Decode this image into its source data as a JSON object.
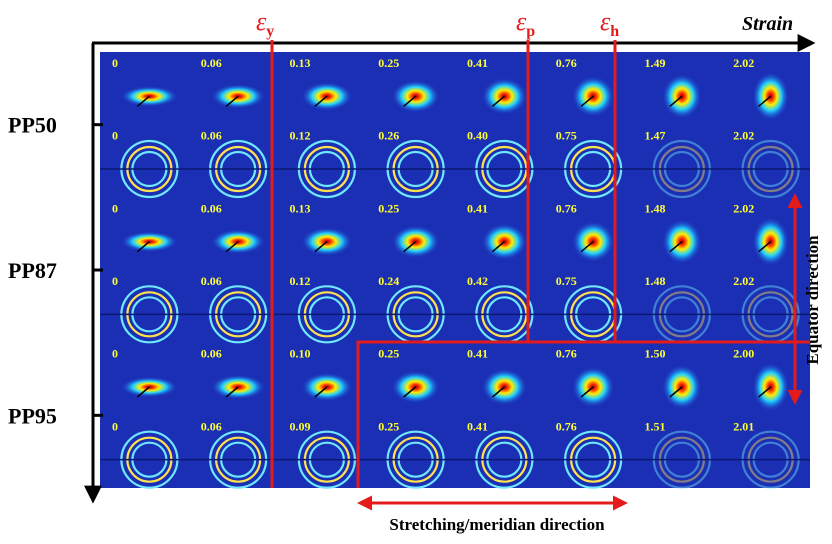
{
  "axis": {
    "title": "Strain"
  },
  "markers": [
    {
      "symbol": "ε",
      "subscript": "y"
    },
    {
      "symbol": "ε",
      "subscript": "p"
    },
    {
      "symbol": "ε",
      "subscript": "h"
    }
  ],
  "samples": [
    "PP50",
    "PP87",
    "PP95"
  ],
  "grid": [
    [
      "0",
      "0.06",
      "0.13",
      "0.25",
      "0.41",
      "0.76",
      "1.49",
      "2.02"
    ],
    [
      "0",
      "0.06",
      "0.12",
      "0.26",
      "0.40",
      "0.75",
      "1.47",
      "2.02"
    ],
    [
      "0",
      "0.06",
      "0.13",
      "0.25",
      "0.41",
      "0.76",
      "1.48",
      "2.02"
    ],
    [
      "0",
      "0.06",
      "0.12",
      "0.24",
      "0.42",
      "0.75",
      "1.48",
      "2.02"
    ],
    [
      "0",
      "0.06",
      "0.10",
      "0.25",
      "0.41",
      "0.76",
      "1.50",
      "2.00"
    ],
    [
      "0",
      "0.06",
      "0.09",
      "0.25",
      "0.41",
      "0.76",
      "1.51",
      "2.01"
    ]
  ],
  "equator_label": "Equator direction",
  "meridian_label": "Stretching/meridian direction"
}
